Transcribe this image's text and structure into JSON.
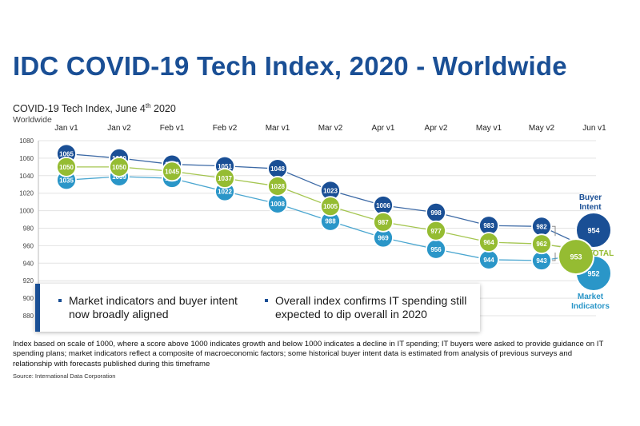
{
  "title": "IDC COVID-19 Tech Index, 2020 - Worldwide",
  "subtitle": "COVID-19 Tech Index, June 4",
  "subtitle_sup": "th",
  "subtitle_year": " 2020",
  "region": "Worldwide",
  "chart_data": {
    "type": "line",
    "categories": [
      "Jan v1",
      "Jan v2",
      "Feb v1",
      "Feb v2",
      "Mar v1",
      "Mar v2",
      "Apr v1",
      "Apr v2",
      "May v1",
      "May v2",
      "Jun v1"
    ],
    "ylim": [
      880,
      1080
    ],
    "yticks": [
      880,
      900,
      920,
      940,
      960,
      980,
      1000,
      1020,
      1040,
      1060,
      1080
    ],
    "grid": true,
    "series": [
      {
        "name": "Buyer Intent",
        "color": "#1a4f95",
        "values": [
          1065,
          1060,
          1053,
          1051,
          1048,
          1023,
          1006,
          998,
          983,
          982,
          954
        ],
        "labels": [
          "1065",
          "1060",
          "1053",
          "1051",
          "1048",
          "1023",
          "1006",
          "998",
          "983",
          "982",
          "954"
        ]
      },
      {
        "name": "TOTAL",
        "color": "#95bc32",
        "values": [
          1050,
          1050,
          1045,
          1037,
          1028,
          1005,
          987,
          977,
          964,
          962,
          953
        ],
        "labels": [
          "1050",
          "1050",
          "1045",
          "1037",
          "1028",
          "1005",
          "987",
          "977",
          "964",
          "962",
          "953"
        ]
      },
      {
        "name": "Market Indicators",
        "color": "#2a96c8",
        "values": [
          1035,
          1039,
          1037,
          1022,
          1008,
          988,
          969,
          956,
          944,
          943,
          952
        ],
        "labels": [
          "1035",
          "1039",
          "1037",
          "1022",
          "1008",
          "988",
          "969",
          "956",
          "944",
          "943",
          "952"
        ]
      }
    ],
    "end_labels": {
      "buyer_line1": "Buyer",
      "buyer_line2": "Intent",
      "total": "TOTAL",
      "market_line1": "Market",
      "market_line2": "Indicators"
    }
  },
  "callout": {
    "bullet1": "Market indicators and buyer intent now broadly aligned",
    "bullet2": "Overall index confirms IT spending still expected to dip overall in 2020"
  },
  "footnote": "Index based on scale of 1000, where a score above 1000 indicates growth and below 1000 indicates a decline in IT spending; IT buyers were asked to provide guidance on IT spending plans; market indicators reflect a composite of macroeconomic factors; some historical buyer intent data is estimated from analysis of previous surveys and relationship with forecasts published during this timeframe",
  "source": "Source: International Data Corporation",
  "colors": {
    "title": "#1a4f95",
    "buyer": "#1a4f95",
    "total": "#95bc32",
    "market": "#2a96c8"
  }
}
